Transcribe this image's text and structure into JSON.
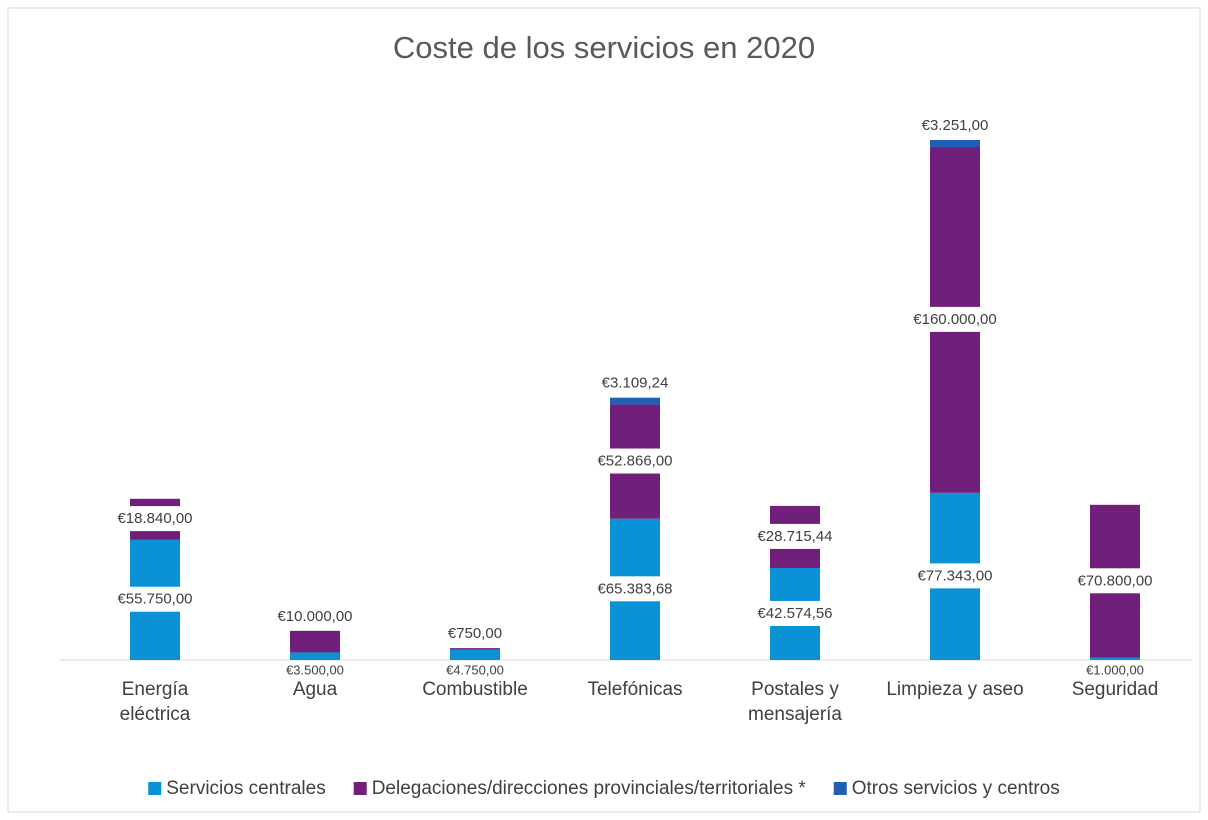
{
  "chart_data": {
    "type": "bar",
    "stacked": true,
    "title": "Coste de los servicios en 2020",
    "categories": [
      "Energía eléctrica",
      "Agua",
      "Combustible",
      "Telefónicas",
      "Postales y mensajería",
      "Limpieza y aseo",
      "Seguridad"
    ],
    "series": [
      {
        "name": "Servicios centrales",
        "color": "#0b91d6",
        "values": [
          55750,
          3500,
          4750,
          65383.68,
          42574.56,
          77343,
          1000
        ],
        "value_labels": [
          "€55.750,00",
          "€3.500,00",
          "€4.750,00",
          "€65.383,68",
          "€42.574,56",
          "€77.343,00",
          "€1.000,00"
        ]
      },
      {
        "name": "Delegaciones/direcciones provinciales/territoriales *",
        "color": "#70207a",
        "values": [
          18840,
          10000,
          750,
          52866,
          28715.44,
          160000,
          70800
        ],
        "value_labels": [
          "€18.840,00",
          "€10.000,00",
          "€750,00",
          "€52.866,00",
          "€28.715,44",
          "€160.000,00",
          "€70.800,00"
        ]
      },
      {
        "name": "Otros servicios y centros",
        "color": "#1f5fb5",
        "values": [
          null,
          null,
          null,
          3109.24,
          null,
          3251,
          null
        ],
        "value_labels": [
          null,
          null,
          null,
          "€3.109,24",
          null,
          "€3.251,00",
          null
        ]
      }
    ],
    "legend": "bottom"
  }
}
